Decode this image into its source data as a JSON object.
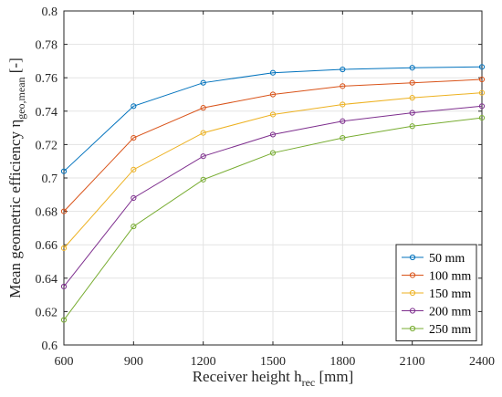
{
  "chart_data": {
    "type": "line",
    "xlabel": "Receiver height h",
    "xlabel_sub": "rec",
    "xlabel_unit": " [mm]",
    "ylabel": "Mean geometric efficiency η",
    "ylabel_sub": "geo,mean",
    "ylabel_unit": " [-]",
    "x": [
      600,
      900,
      1200,
      1500,
      1800,
      2100,
      2400
    ],
    "xlim": [
      600,
      2400
    ],
    "ylim": [
      0.6,
      0.8
    ],
    "xticks": [
      600,
      900,
      1200,
      1500,
      1800,
      2100,
      2400
    ],
    "xtick_labels": [
      "600",
      "900",
      "1200",
      "1500",
      "1800",
      "2100",
      "2400"
    ],
    "yticks": [
      0.6,
      0.62,
      0.64,
      0.66,
      0.68,
      0.7,
      0.72,
      0.74,
      0.76,
      0.78,
      0.8
    ],
    "ytick_labels": [
      "0.6",
      "0.62",
      "0.64",
      "0.66",
      "0.68",
      "0.7",
      "0.72",
      "0.74",
      "0.76",
      "0.78",
      "0.8"
    ],
    "grid": true,
    "legend_position": "bottom-right",
    "series": [
      {
        "name": "50 mm",
        "color": "#0072BD",
        "values": [
          0.704,
          0.743,
          0.757,
          0.763,
          0.765,
          0.766,
          0.7665
        ]
      },
      {
        "name": "100 mm",
        "color": "#D95319",
        "values": [
          0.68,
          0.724,
          0.742,
          0.75,
          0.755,
          0.757,
          0.759
        ]
      },
      {
        "name": "150 mm",
        "color": "#EDB120",
        "values": [
          0.658,
          0.705,
          0.727,
          0.738,
          0.744,
          0.748,
          0.751
        ]
      },
      {
        "name": "200 mm",
        "color": "#7E2F8E",
        "values": [
          0.635,
          0.688,
          0.713,
          0.726,
          0.734,
          0.739,
          0.743
        ]
      },
      {
        "name": "250 mm",
        "color": "#77AC30",
        "values": [
          0.615,
          0.671,
          0.699,
          0.715,
          0.724,
          0.731,
          0.736
        ]
      }
    ]
  }
}
